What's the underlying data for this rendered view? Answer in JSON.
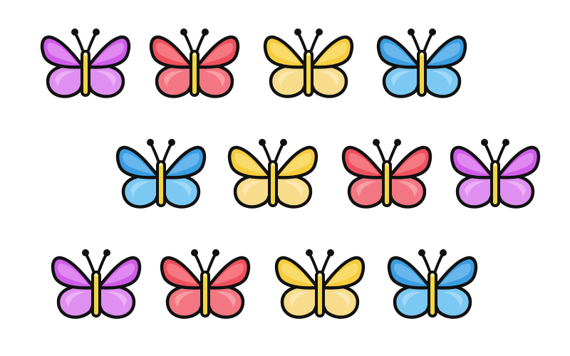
{
  "scene": {
    "background": "#ffffff",
    "outline_color": "#111111",
    "body_color": "#f2d642",
    "rows": [
      [
        "purple",
        "red",
        "yellow",
        "blue"
      ],
      [
        "blue",
        "yellow",
        "red",
        "purple"
      ],
      [
        "purple",
        "red",
        "yellow",
        "blue"
      ]
    ]
  },
  "palettes": {
    "purple": {
      "upper": "#cf5ce8",
      "upper_light": "#e79af5",
      "lower": "#df8ff0",
      "lower_light": "#eeb6f7"
    },
    "red": {
      "upper": "#f0505e",
      "upper_light": "#f88a92",
      "lower": "#f27782",
      "lower_light": "#f9a6ad"
    },
    "yellow": {
      "upper": "#f5cc3c",
      "upper_light": "#fbe17f",
      "lower": "#f7dc8c",
      "lower_light": "#fbebb8"
    },
    "blue": {
      "upper": "#3a9de2",
      "upper_light": "#7cc2f1",
      "lower": "#7bc8f2",
      "lower_light": "#a9dcf7"
    }
  }
}
